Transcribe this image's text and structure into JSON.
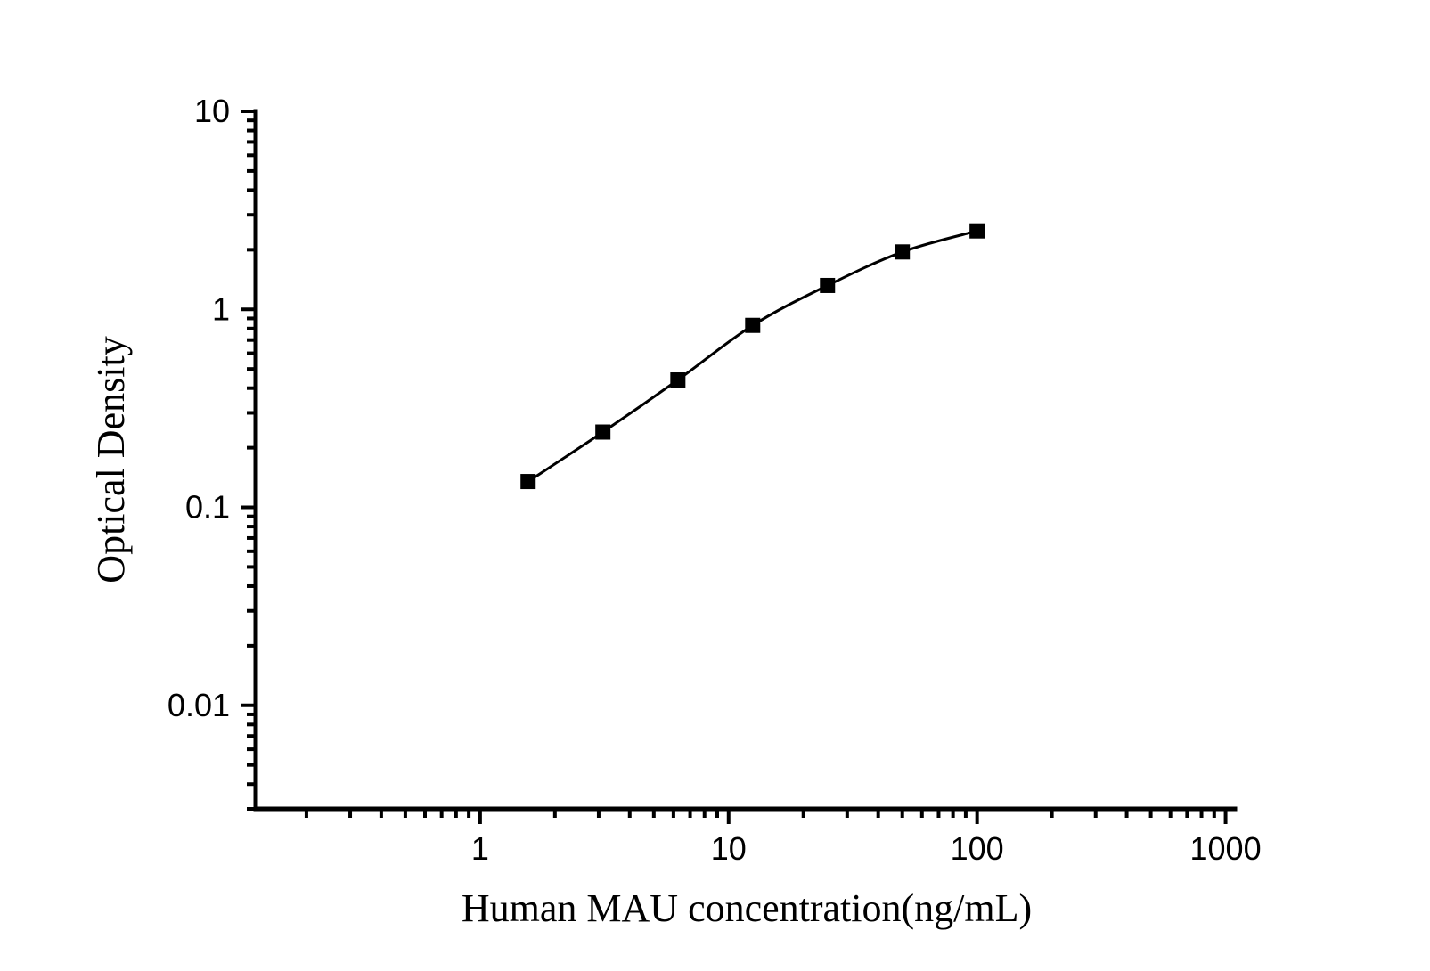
{
  "chart_data": {
    "type": "line",
    "scale": {
      "x": "log",
      "y": "log"
    },
    "series": [
      {
        "name": "standard-curve",
        "x": [
          1.56,
          3.12,
          6.25,
          12.5,
          25,
          50,
          100
        ],
        "y": [
          0.135,
          0.24,
          0.44,
          0.83,
          1.32,
          1.95,
          2.49
        ]
      }
    ],
    "xlabel": "Human MAU concentration(ng/mL)",
    "ylabel": "Optical Density",
    "x_major_ticks": [
      1,
      10,
      100,
      1000
    ],
    "x_tick_labels": [
      "1",
      "10",
      "100",
      "1000"
    ],
    "y_major_ticks": [
      10,
      1,
      0.1,
      0.01
    ],
    "y_tick_labels": [
      "10",
      "1",
      "0.1",
      "0.01"
    ],
    "xlim": [
      0.125,
      1090
    ],
    "ylim": [
      0.003,
      10
    ],
    "grid": false,
    "legend": null,
    "marker": "filled-square-marker",
    "line_color": "#000000",
    "marker_color": "#000000",
    "axis_color": "#000000",
    "background_color": "#ffffff"
  }
}
